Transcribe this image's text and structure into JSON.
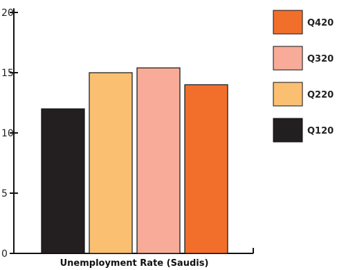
{
  "chart_data": {
    "type": "bar",
    "xlabel": "Unemployment Rate (Saudis)",
    "ylabel": "",
    "ylim": [
      0,
      20
    ],
    "yticks": [
      "0",
      "5",
      "10",
      "15",
      "20"
    ],
    "legend_position": "right",
    "categories": [
      "Unemployment Rate (Saudis)"
    ],
    "series": [
      {
        "name": "Q120",
        "values": [
          12.0
        ],
        "color": "#231f20"
      },
      {
        "name": "Q220",
        "values": [
          15.0
        ],
        "color": "#fbbf72"
      },
      {
        "name": "Q320",
        "values": [
          15.4
        ],
        "color": "#f7ab98"
      },
      {
        "name": "Q420",
        "values": [
          14.0
        ],
        "color": "#f26f2b"
      }
    ],
    "legend_order": [
      "Q420",
      "Q320",
      "Q220",
      "Q120"
    ],
    "bar_outline_color": "#111111"
  }
}
